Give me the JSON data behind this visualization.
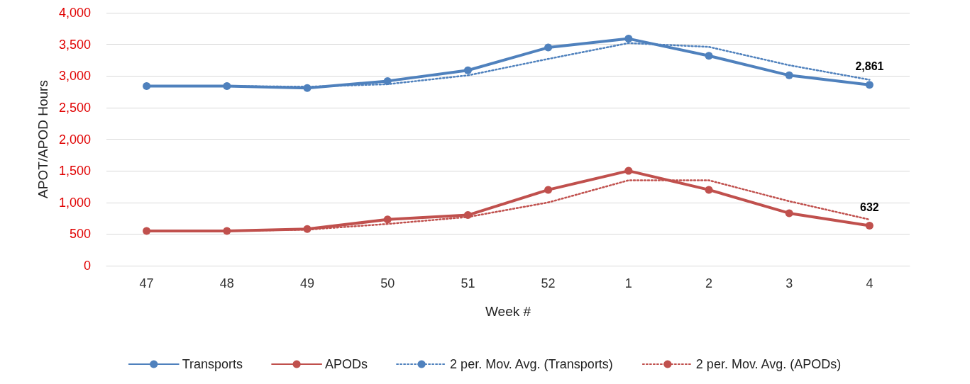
{
  "chart_data": {
    "type": "line",
    "xlabel": "Week #",
    "ylabel": "APOT/APOD Hours",
    "categories": [
      "47",
      "48",
      "49",
      "50",
      "51",
      "52",
      "1",
      "2",
      "3",
      "4"
    ],
    "series": [
      {
        "name": "Transports",
        "color": "#4f81bd",
        "marker": "circle",
        "line_style": "solid",
        "values": [
          2840,
          2840,
          2810,
          2920,
          3090,
          3450,
          3590,
          3320,
          3010,
          2861
        ],
        "value_labels": [
          null,
          null,
          null,
          null,
          null,
          null,
          null,
          null,
          null,
          "2,861"
        ]
      },
      {
        "name": "APODs",
        "color": "#c0504d",
        "marker": "circle",
        "line_style": "solid",
        "values": [
          550,
          550,
          580,
          730,
          800,
          1200,
          1500,
          1200,
          830,
          632
        ],
        "value_labels": [
          null,
          null,
          null,
          null,
          null,
          null,
          null,
          null,
          null,
          "632"
        ]
      },
      {
        "name": "2 per. Mov. Avg. (Transports)",
        "color": "#4f81bd",
        "marker": "none",
        "line_style": "dotted",
        "values": [
          null,
          2840,
          2830,
          2870,
          3010,
          3270,
          3520,
          3460,
          3170,
          2940
        ]
      },
      {
        "name": "2 per. Mov. Avg. (APODs)",
        "color": "#c0504d",
        "marker": "none",
        "line_style": "dotted",
        "values": [
          null,
          550,
          570,
          660,
          770,
          1000,
          1350,
          1350,
          1020,
          730
        ]
      }
    ],
    "ylim": [
      0,
      4000
    ],
    "yticks": [
      0,
      500,
      {
        "value": 1000,
        "label": "1,000"
      },
      {
        "value": 1500,
        "label": "1,500"
      },
      {
        "value": 2000,
        "label": "2,000"
      },
      {
        "value": 2500,
        "label": "2,500"
      },
      {
        "value": 3000,
        "label": "3,000"
      },
      {
        "value": 3500,
        "label": "3,500"
      },
      {
        "value": 4000,
        "label": "4,000"
      }
    ],
    "grid": "y",
    "legend": "bottom"
  }
}
